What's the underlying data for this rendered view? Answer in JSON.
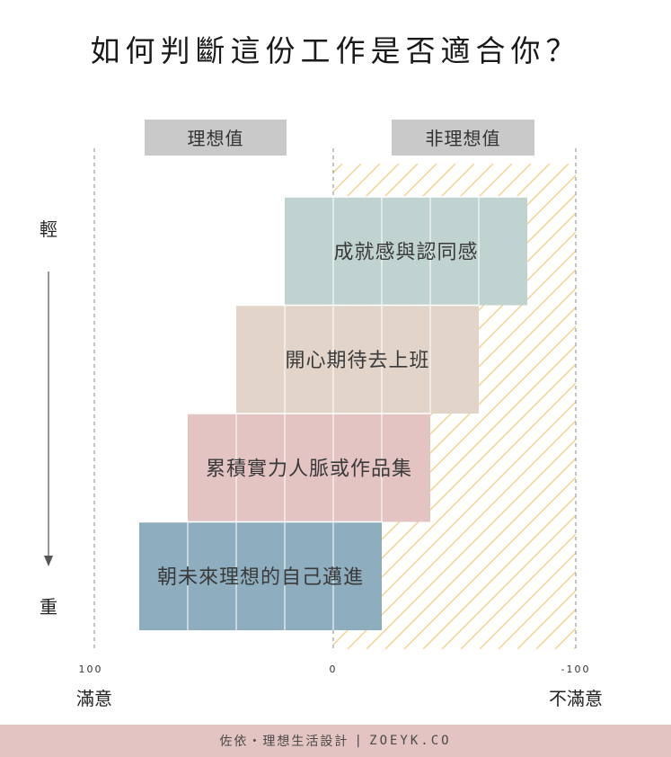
{
  "title": "如何判斷這份工作是否適合你？",
  "colors": {
    "ideal_bg": "#c9c9c9",
    "hatch": "#f3d28c",
    "axis_dash": "#8a8a8a",
    "footer_bg": "#e3c4c3",
    "text": "#3a3a3a"
  },
  "chart_data": {
    "type": "bar",
    "orientation": "horizontal",
    "x_axis": {
      "ticks": [
        {
          "value": 100,
          "label": "100"
        },
        {
          "value": 0,
          "label": "0"
        },
        {
          "value": -100,
          "label": "-100"
        }
      ],
      "end_labels": {
        "left": "滿意",
        "right": "不滿意"
      },
      "range": [
        100,
        -100
      ]
    },
    "regions": [
      {
        "label": "理想值",
        "from": 100,
        "to": 0
      },
      {
        "label": "非理想值",
        "from": 0,
        "to": -100,
        "hatched": true
      }
    ],
    "y_axis": {
      "top_label": "輕",
      "bottom_label": "重",
      "arrow": "down"
    },
    "bars": [
      {
        "label": "成就感與認同感",
        "start": 20,
        "end": -80,
        "color": "#c1d3d1"
      },
      {
        "label": "開心期待去上班",
        "start": 40,
        "end": -60,
        "color": "#e2d4c8"
      },
      {
        "label": "累積實力人脈或作品集",
        "start": 60,
        "end": -40,
        "color": "#e4c3c3"
      },
      {
        "label": "朝未來理想的自己邁進",
        "start": 80,
        "end": -20,
        "color": "#8eadbe"
      }
    ]
  },
  "footer": {
    "brand_cn": "佐依・理想生活設計",
    "separator": "|",
    "brand_en": "ZOEYK.CO"
  }
}
